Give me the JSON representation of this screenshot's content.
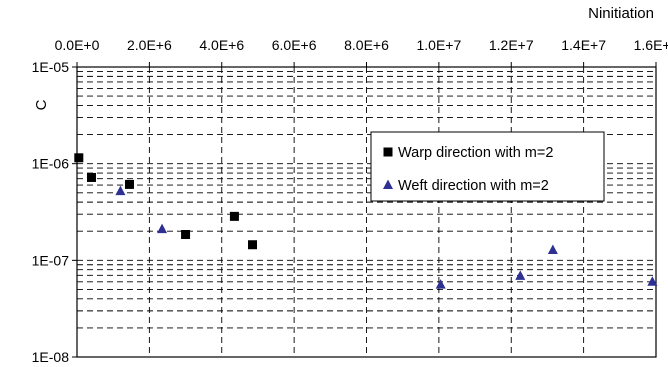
{
  "chart_data": {
    "type": "scatter",
    "title": "",
    "xlabel": "Ninitiation",
    "ylabel": "C",
    "x_axis_position": "top",
    "xlim": [
      0,
      16000000
    ],
    "ylim": [
      1e-08,
      1e-05
    ],
    "y_scale": "log",
    "grid": true,
    "grid_style": "dashed",
    "legend_position": "right-center",
    "x_tick_labels": [
      "0.0E+0",
      "2.0E+6",
      "4.0E+6",
      "6.0E+6",
      "8.0E+6",
      "1.0E+7",
      "1.2E+7",
      "1.4E+7",
      "1.6E+7"
    ],
    "x_tick_values": [
      0,
      2000000,
      4000000,
      6000000,
      8000000,
      10000000,
      12000000,
      14000000,
      16000000
    ],
    "y_tick_labels": [
      "1E-05",
      "1E-06",
      "1E-07",
      "1E-08"
    ],
    "y_tick_values": [
      1e-05,
      1e-06,
      1e-07,
      1e-08
    ],
    "series": [
      {
        "name": "Warp direction with m=2",
        "marker": "square",
        "color": "#000000",
        "points": [
          {
            "x": 50000,
            "y": 1.15e-06
          },
          {
            "x": 400000,
            "y": 7.2e-07
          },
          {
            "x": 1450000,
            "y": 6.1e-07
          },
          {
            "x": 3000000,
            "y": 1.85e-07
          },
          {
            "x": 4350000,
            "y": 2.85e-07
          },
          {
            "x": 4850000,
            "y": 1.45e-07
          }
        ]
      },
      {
        "name": "Weft direction with m=2",
        "marker": "triangle",
        "color": "#2e3192",
        "points": [
          {
            "x": 1200000,
            "y": 5.2e-07
          },
          {
            "x": 2350000,
            "y": 2.1e-07
          },
          {
            "x": 10050000,
            "y": 5.6e-08
          },
          {
            "x": 12250000,
            "y": 6.9e-08
          },
          {
            "x": 13150000,
            "y": 1.28e-07
          },
          {
            "x": 15900000,
            "y": 6e-08
          }
        ]
      }
    ]
  }
}
